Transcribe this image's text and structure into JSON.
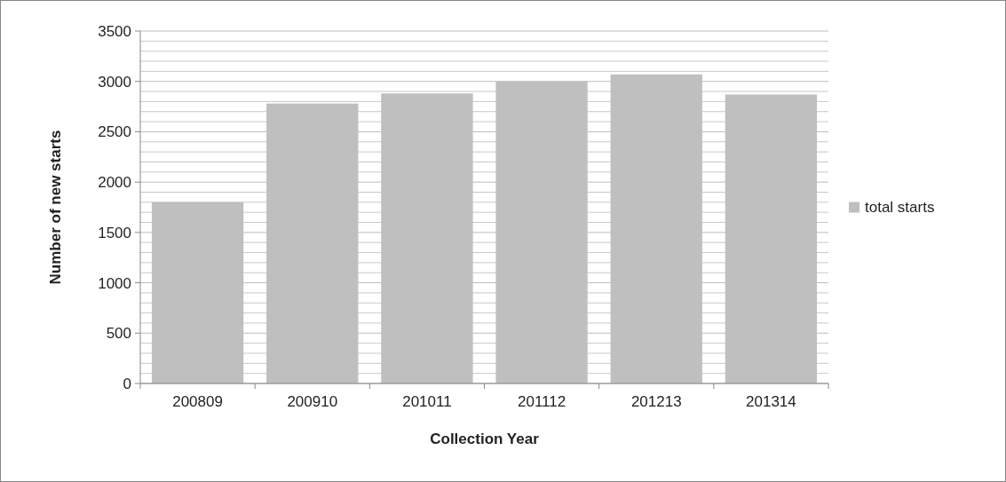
{
  "chart_data": {
    "type": "bar",
    "xlabel": "Collection Year",
    "ylabel": "Number of new starts",
    "categories": [
      "200809",
      "200910",
      "201011",
      "201112",
      "201213",
      "201314"
    ],
    "series": [
      {
        "name": "total starts",
        "color": "#bfbfbf",
        "values": [
          1800,
          2780,
          2880,
          3000,
          3070,
          2870
        ]
      }
    ],
    "ylim": [
      0,
      3500
    ],
    "yticks": [
      0,
      500,
      1000,
      1500,
      2000,
      2500,
      3000,
      3500
    ],
    "grid": "y",
    "legend": "right"
  }
}
